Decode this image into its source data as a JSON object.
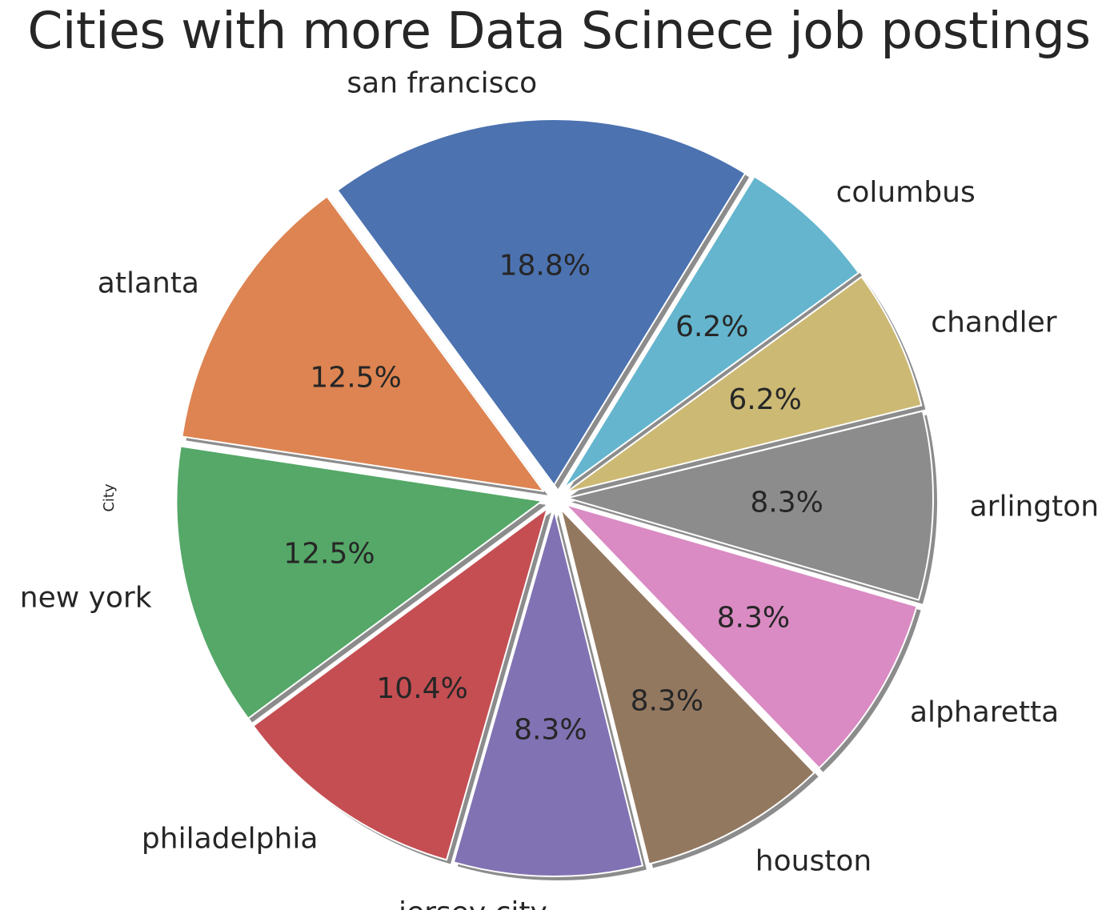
{
  "chart_data": {
    "type": "pie",
    "title": "Cities with more Data Scinece job postings",
    "ylabel": "City",
    "categories": [
      "san francisco",
      "atlanta",
      "new york",
      "philadelphia",
      "jersey city",
      "houston",
      "alpharetta",
      "arlington",
      "chandler",
      "columbus"
    ],
    "values": [
      18.8,
      12.5,
      12.5,
      10.4,
      8.3,
      8.3,
      8.3,
      8.3,
      6.2,
      6.2
    ],
    "value_labels": [
      "18.8%",
      "12.5%",
      "12.5%",
      "10.4%",
      "8.3%",
      "8.3%",
      "8.3%",
      "8.3%",
      "6.2%",
      "6.2%"
    ],
    "colors": [
      "#4C72B0",
      "#DD8452",
      "#55A868",
      "#C44E52",
      "#8172B3",
      "#937860",
      "#DA8BC3",
      "#8C8C8C",
      "#CCB974",
      "#64B5CD"
    ],
    "shadow": true,
    "exploded": true
  }
}
